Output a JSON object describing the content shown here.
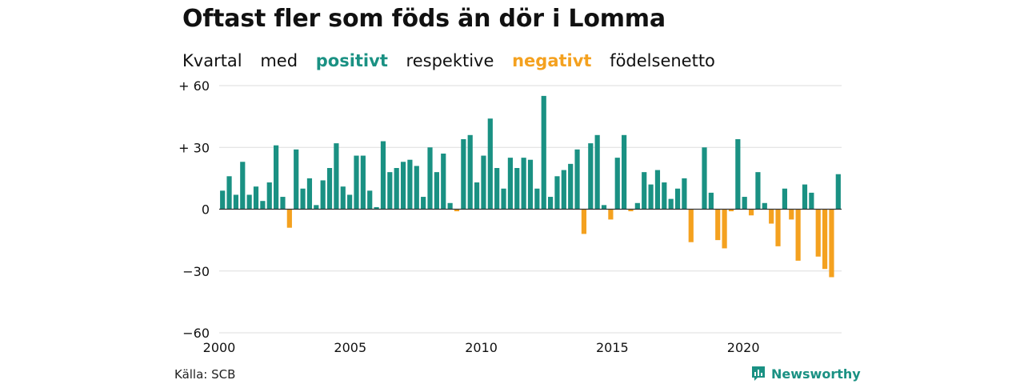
{
  "title": "Oftast fler som föds än dör i Lomma",
  "subtitle": {
    "w1": "Kvartal",
    "w2": "med",
    "positive_word": "positivt",
    "w3": "respektive",
    "negative_word": "negativt",
    "w4": "födelsenetto"
  },
  "colors": {
    "positive": "#1a9183",
    "negative": "#f4a11f",
    "grid": "#dddddd",
    "zero": "#333333"
  },
  "source": "Källa: SCB",
  "brand": {
    "name": "Newsworthy",
    "icon": "newsworthy-logo-icon"
  },
  "chart_data": {
    "type": "bar",
    "start_year": 2000,
    "quarters_per_year": 4,
    "ylim": [
      -60,
      60
    ],
    "xlim": [
      2000,
      2023.75
    ],
    "y_ticks": [
      {
        "value": 60,
        "label": "+ 60"
      },
      {
        "value": 30,
        "label": "+ 30"
      },
      {
        "value": 0,
        "label": "0"
      },
      {
        "value": -30,
        "label": "−30"
      },
      {
        "value": -60,
        "label": "−60"
      }
    ],
    "x_ticks": [
      {
        "value": 2000,
        "label": "2000"
      },
      {
        "value": 2005,
        "label": "2005"
      },
      {
        "value": 2010,
        "label": "2010"
      },
      {
        "value": 2015,
        "label": "2015"
      },
      {
        "value": 2020,
        "label": "2020"
      }
    ],
    "values": [
      9,
      16,
      7,
      23,
      7,
      11,
      4,
      13,
      31,
      6,
      -9,
      29,
      10,
      15,
      2,
      14,
      20,
      32,
      11,
      7,
      26,
      26,
      9,
      1,
      33,
      18,
      20,
      23,
      24,
      21,
      6,
      30,
      18,
      27,
      3,
      -1,
      34,
      36,
      13,
      26,
      44,
      20,
      10,
      25,
      20,
      25,
      24,
      10,
      55,
      6,
      16,
      19,
      22,
      29,
      -12,
      32,
      36,
      2,
      -5,
      25,
      36,
      -1,
      3,
      18,
      12,
      19,
      13,
      5,
      10,
      15,
      -16,
      0,
      30,
      8,
      -15,
      -19,
      -1,
      34,
      6,
      -3,
      18,
      3,
      -7,
      -18,
      10,
      -5,
      -25,
      12,
      8,
      -23,
      -29,
      -33,
      17
    ]
  }
}
